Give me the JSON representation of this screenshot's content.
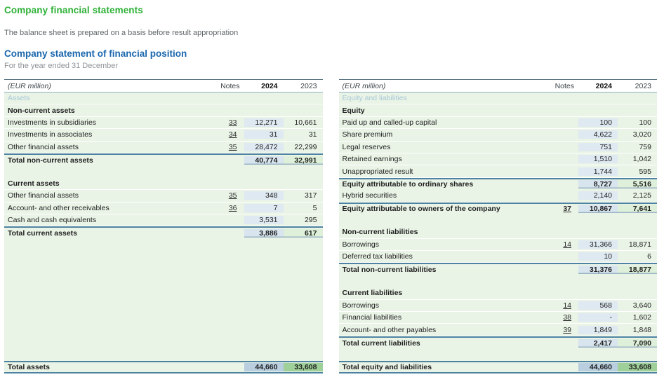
{
  "page": {
    "title": "Company financial statements",
    "subtitle": "The balance sheet is prepared on a basis before result appropriation",
    "statement_title": "Company statement of financial position",
    "statement_period": "For the year ended 31 December"
  },
  "colors": {
    "title_green": "#2eb137",
    "title_blue": "#1a67ad",
    "row_green": "#e9f3e6",
    "band_blue": "#dfe9f1",
    "total_2024_bg": "#d8e5ef",
    "total_2023_bg": "#def0d9",
    "grand_2024_bg": "#b9cfdf",
    "grand_2023_bg": "#9fd099",
    "rule_teal": "#4d83a0",
    "rule_dark": "#54707f",
    "rule_light": "#8fb0c2",
    "muted_label": "#a9cad8"
  },
  "tables": [
    {
      "id": "assets",
      "title_row": {
        "unit": "(EUR million)",
        "notes": "Notes",
        "y2024": "2024",
        "y2023": "2023"
      },
      "rows": [
        {
          "type": "muted",
          "label": "Assets"
        },
        {
          "type": "section",
          "label": "Non-current assets"
        },
        {
          "type": "item",
          "label": "Investments in subsidiaries",
          "note": "33",
          "y2024": "12,271",
          "y2023": "10,661"
        },
        {
          "type": "item",
          "label": "Investments in associates",
          "note": "34",
          "y2024": "31",
          "y2023": "31"
        },
        {
          "type": "item",
          "label": "Other financial assets",
          "note": "35",
          "y2024": "28,472",
          "y2023": "22,299"
        },
        {
          "type": "total",
          "label": "Total non-current assets",
          "y2024": "40,774",
          "y2023": "32,991"
        },
        {
          "type": "blank"
        },
        {
          "type": "section",
          "label": "Current assets"
        },
        {
          "type": "item",
          "label": "Other financial assets",
          "note": "35",
          "y2024": "348",
          "y2023": "317"
        },
        {
          "type": "item",
          "label": "Account- and other receivables",
          "note": "36",
          "y2024": "7",
          "y2023": "5"
        },
        {
          "type": "item",
          "label": "Cash and cash equivalents",
          "y2024": "3,531",
          "y2023": "295"
        },
        {
          "type": "total",
          "label": "Total current assets",
          "y2024": "3,886",
          "y2023": "617"
        },
        {
          "type": "spacer"
        },
        {
          "type": "grand",
          "label": "Total assets",
          "y2024": "44,660",
          "y2023": "33,608"
        }
      ]
    },
    {
      "id": "equity-liabilities",
      "title_row": {
        "unit": "(EUR million)",
        "notes": "Notes",
        "y2024": "2024",
        "y2023": "2023"
      },
      "rows": [
        {
          "type": "muted",
          "label": "Equity and liabilities"
        },
        {
          "type": "section",
          "label": "Equity"
        },
        {
          "type": "item",
          "label": "Paid up and called-up capital",
          "y2024": "100",
          "y2023": "100"
        },
        {
          "type": "item",
          "label": "Share premium",
          "y2024": "4,622",
          "y2023": "3,020"
        },
        {
          "type": "item",
          "label": "Legal reserves",
          "y2024": "751",
          "y2023": "759"
        },
        {
          "type": "item",
          "label": "Retained earnings",
          "y2024": "1,510",
          "y2023": "1,042"
        },
        {
          "type": "item",
          "label": "Unappropriated result",
          "y2024": "1,744",
          "y2023": "595"
        },
        {
          "type": "total",
          "label": "Equity attributable to ordinary shares",
          "y2024": "8,727",
          "y2023": "5,516"
        },
        {
          "type": "item",
          "label": "Hybrid securities",
          "y2024": "2,140",
          "y2023": "2,125"
        },
        {
          "type": "total",
          "label": "Equity attributable to owners of the company",
          "note": "37",
          "y2024": "10,867",
          "y2023": "7,641"
        },
        {
          "type": "blank"
        },
        {
          "type": "section",
          "label": "Non-current liabilities"
        },
        {
          "type": "item",
          "label": "Borrowings",
          "note": "14",
          "y2024": "31,366",
          "y2023": "18,871"
        },
        {
          "type": "item",
          "label": "Deferred tax liabilities",
          "y2024": "10",
          "y2023": "6"
        },
        {
          "type": "total",
          "label": "Total non-current liabilities",
          "y2024": "31,376",
          "y2023": "18,877"
        },
        {
          "type": "blank"
        },
        {
          "type": "section",
          "label": "Current liabilities"
        },
        {
          "type": "item",
          "label": "Borrowings",
          "note": "14",
          "y2024": "568",
          "y2023": "3,640"
        },
        {
          "type": "item",
          "label": "Financial liabilities",
          "note": "38",
          "y2024": "-",
          "y2023": "1,602"
        },
        {
          "type": "item",
          "label": "Account- and other payables",
          "note": "39",
          "y2024": "1,849",
          "y2023": "1,848"
        },
        {
          "type": "total",
          "label": "Total current liabilities",
          "y2024": "2,417",
          "y2023": "7,090"
        },
        {
          "type": "blank"
        },
        {
          "type": "grand",
          "label": "Total equity and liabilities",
          "y2024": "44,660",
          "y2023": "33,608"
        }
      ]
    }
  ]
}
